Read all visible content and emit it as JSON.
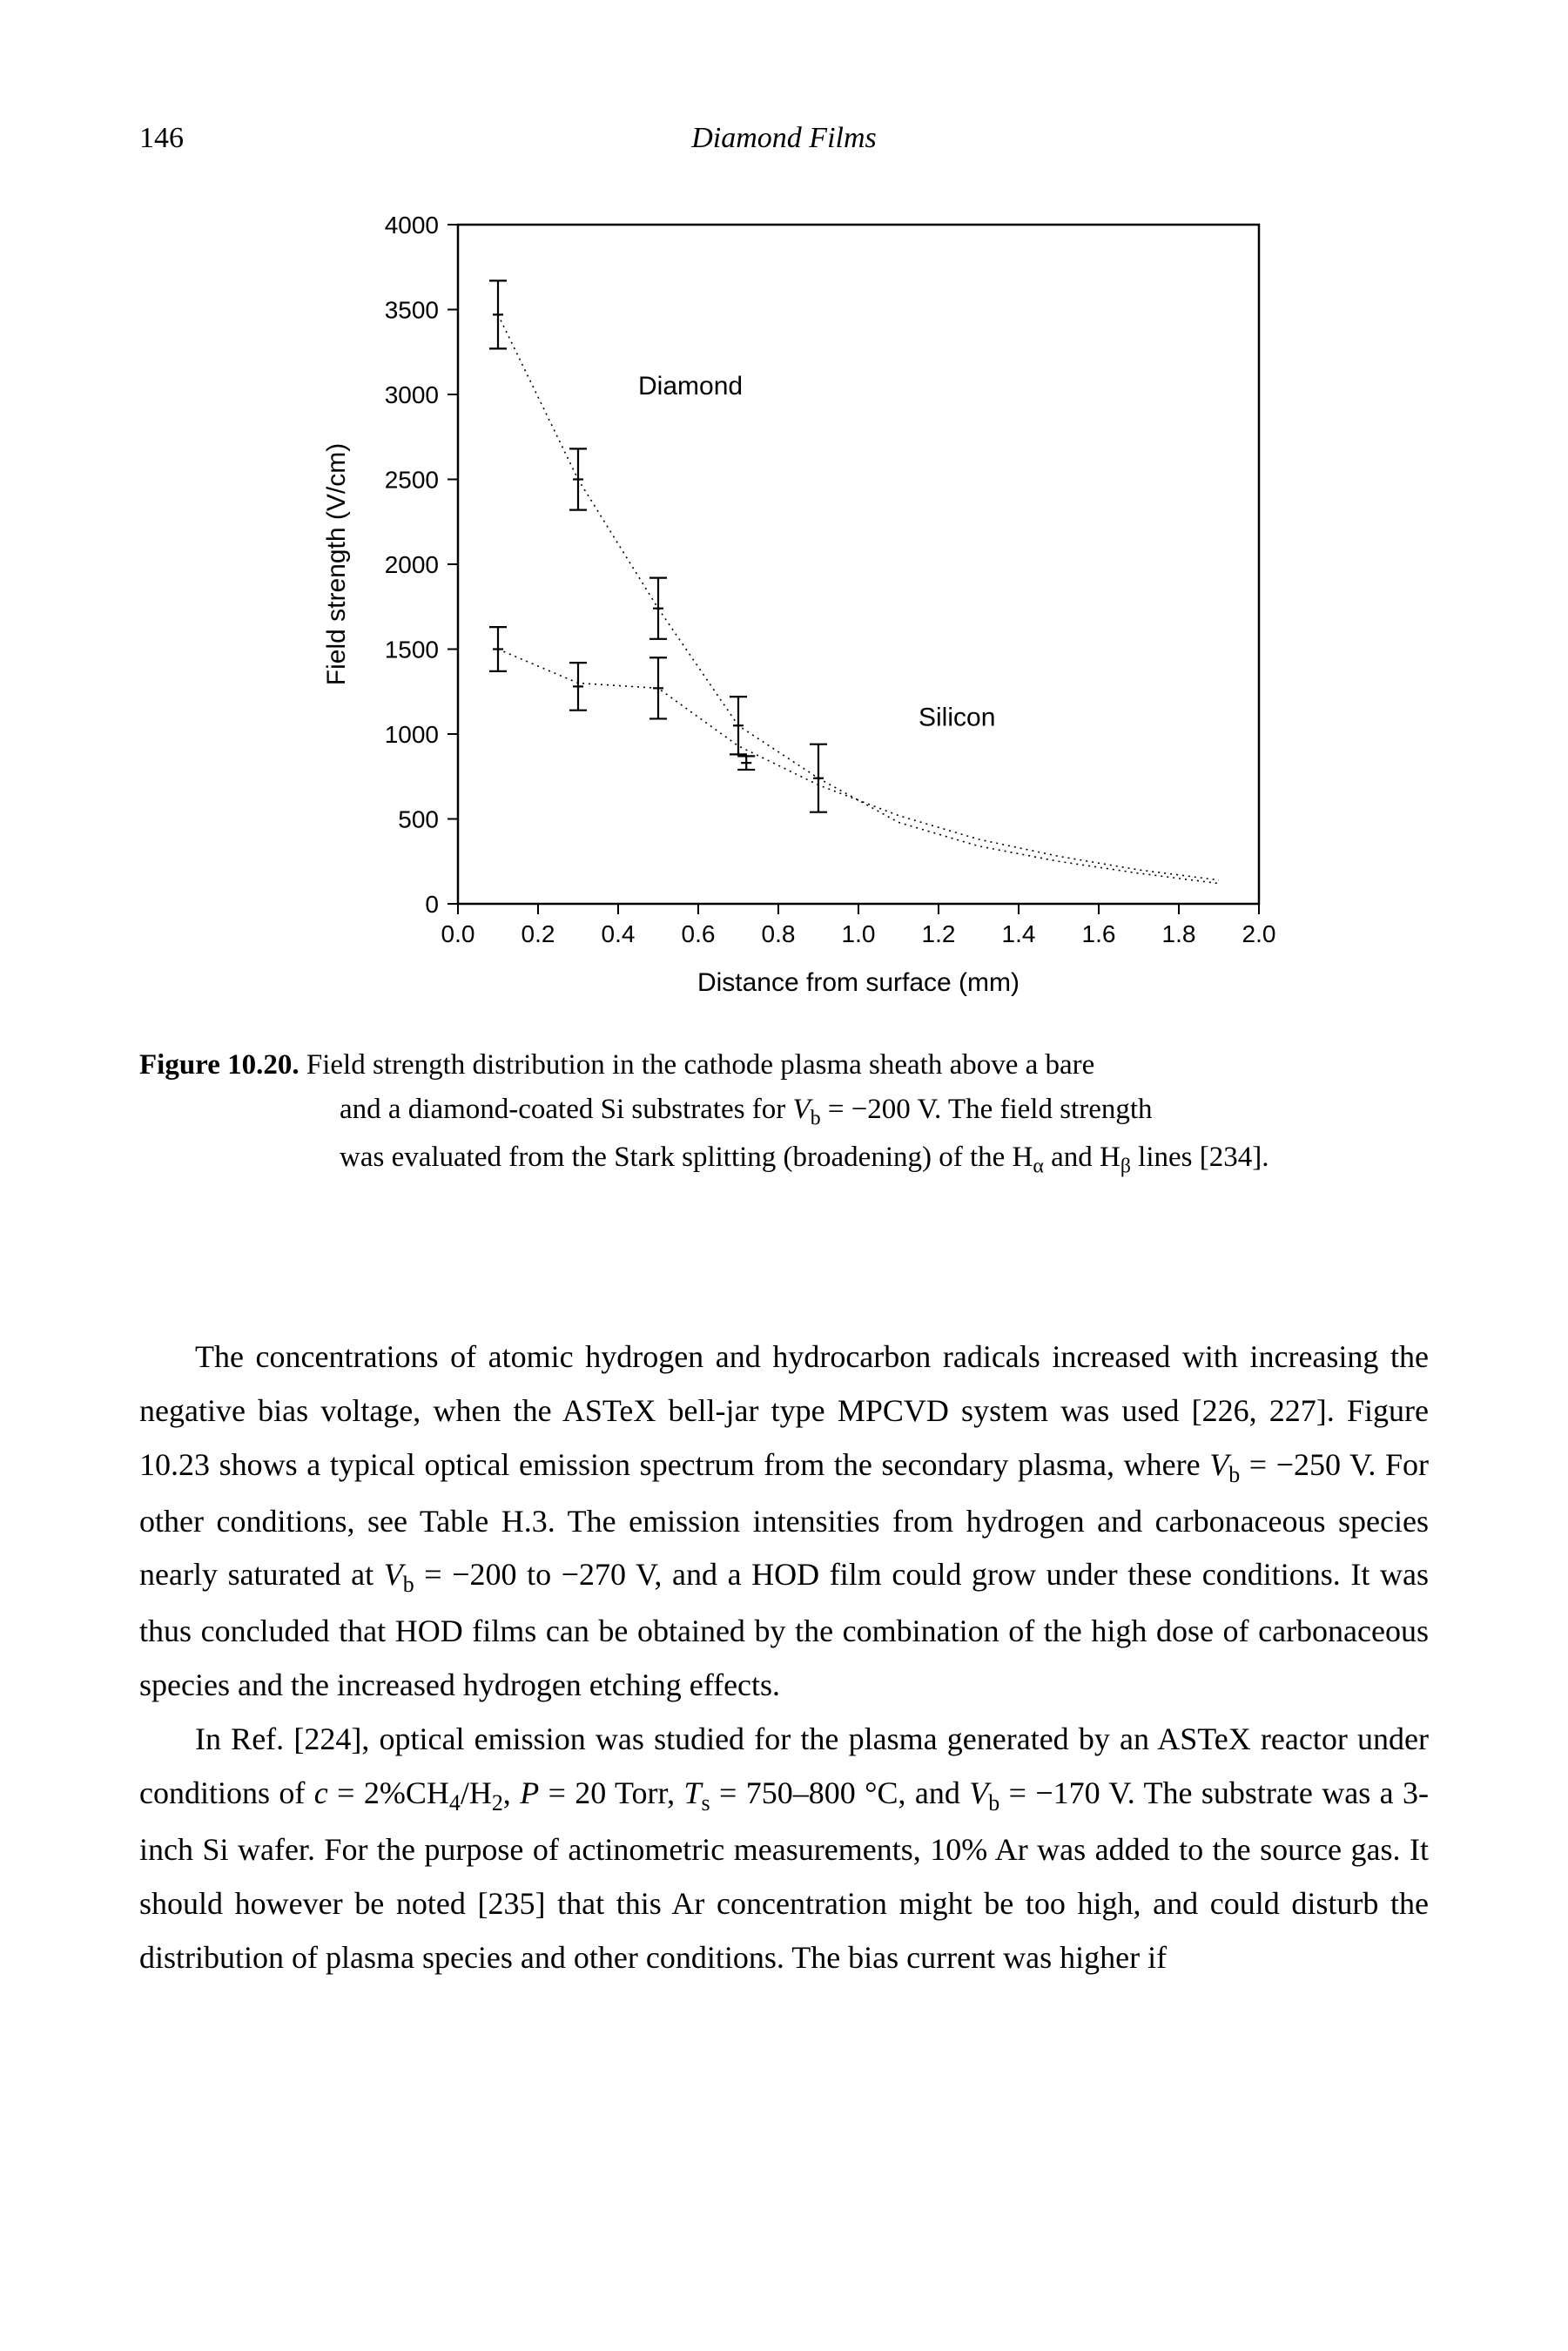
{
  "header": {
    "page_number": "146",
    "running_title": "Diamond Films"
  },
  "figure": {
    "type": "scatter-errorbar",
    "axis": {
      "x": {
        "label": "Distance from surface (mm)",
        "min": 0.0,
        "max": 2.0,
        "ticks": [
          0.0,
          0.2,
          0.4,
          0.6,
          0.8,
          1.0,
          1.2,
          1.4,
          1.6,
          1.8,
          2.0
        ],
        "tick_labels": [
          "0.0",
          "0.2",
          "0.4",
          "0.6",
          "0.8",
          "1.0",
          "1.2",
          "1.4",
          "1.6",
          "1.8",
          "2.0"
        ],
        "label_fontsize": 30,
        "tick_fontsize": 28
      },
      "y": {
        "label": "Field strength (V/cm)",
        "min": 0,
        "max": 4000,
        "ticks": [
          0,
          500,
          1000,
          1500,
          2000,
          2500,
          3000,
          3500,
          4000
        ],
        "tick_labels": [
          "0",
          "500",
          "1000",
          "1500",
          "2000",
          "2500",
          "3000",
          "3500",
          "4000"
        ],
        "label_fontsize": 30,
        "tick_fontsize": 28
      }
    },
    "colors": {
      "axis": "#000000",
      "series": "#000000",
      "background": "#ffffff",
      "guide_dash": "2,5"
    },
    "series_diamond": {
      "label": "Diamond",
      "label_xy": [
        0.45,
        3000
      ],
      "points": [
        {
          "x": 0.1,
          "y": 3470,
          "err": 200
        },
        {
          "x": 0.3,
          "y": 2500,
          "err": 180
        },
        {
          "x": 0.5,
          "y": 1740,
          "err": 180
        },
        {
          "x": 0.7,
          "y": 1050,
          "err": 170
        },
        {
          "x": 0.72,
          "y": 830,
          "err": 40
        },
        {
          "x": 0.9,
          "y": 740,
          "err": 200
        }
      ],
      "guide": [
        {
          "x": 0.1,
          "y": 3470
        },
        {
          "x": 0.3,
          "y": 2500
        },
        {
          "x": 0.5,
          "y": 1740
        },
        {
          "x": 0.7,
          "y": 1050
        },
        {
          "x": 0.9,
          "y": 740
        },
        {
          "x": 1.1,
          "y": 480
        },
        {
          "x": 1.3,
          "y": 340
        },
        {
          "x": 1.5,
          "y": 250
        },
        {
          "x": 1.7,
          "y": 180
        },
        {
          "x": 1.9,
          "y": 120
        }
      ]
    },
    "series_silicon": {
      "label": "Silicon",
      "label_xy": [
        1.15,
        1050
      ],
      "points": [
        {
          "x": 0.1,
          "y": 1500,
          "err": 130
        },
        {
          "x": 0.3,
          "y": 1280,
          "err": 140
        },
        {
          "x": 0.5,
          "y": 1270,
          "err": 180
        }
      ],
      "guide": [
        {
          "x": 0.1,
          "y": 1500
        },
        {
          "x": 0.3,
          "y": 1300
        },
        {
          "x": 0.5,
          "y": 1270
        },
        {
          "x": 0.7,
          "y": 930
        },
        {
          "x": 0.9,
          "y": 700
        },
        {
          "x": 1.1,
          "y": 520
        },
        {
          "x": 1.3,
          "y": 380
        },
        {
          "x": 1.5,
          "y": 280
        },
        {
          "x": 1.7,
          "y": 200
        },
        {
          "x": 1.9,
          "y": 140
        }
      ]
    },
    "caption": {
      "number": "Figure 10.20.",
      "line1": "Field strength distribution in the cathode plasma sheath above a bare",
      "line2_html": "and a diamond-coated Si substrates for <i>V</i><sub>b</sub> = −200 V. The field strength",
      "line3_html": "was evaluated from the Stark splitting (broadening) of the H<sub>α</sub> and H<sub>β</sub> lines [234]."
    }
  },
  "paragraphs": {
    "p1_html": "The concentrations of atomic hydrogen and hydrocarbon radicals increased with increasing the negative bias voltage, when the ASTeX bell-jar type MPCVD system was used [226, 227]. Figure 10.23 shows a typical optical emission spectrum from the secondary plasma, where <i>V</i><sub>b</sub> = −250 V. For other conditions, see Table H.3. The emission intensities from hydrogen and carbonaceous species nearly saturated at <i>V</i><sub>b</sub> = −200 to −270 V, and a HOD film could grow under these conditions. It was thus concluded that HOD films can be obtained by the combination of the high dose of carbonaceous species and the increased hydrogen etching effects.",
    "p2_html": "In Ref. [224], optical emission was studied for the plasma generated by an ASTeX reactor under conditions of <i>c</i> = 2%CH<sub>4</sub>/H<sub>2</sub>, <i>P</i> = 20 Torr, <i>T</i><sub>s</sub> = 750–800 °C, and <i>V</i><sub>b</sub> = −170 V. The substrate was a 3-inch Si wafer. For the purpose of actinometric measurements, 10% Ar was added to the source gas. It should however be noted [235] that this Ar concentration might be too high, and could disturb the distribution of plasma species and other conditions. The bias current was higher if"
  }
}
